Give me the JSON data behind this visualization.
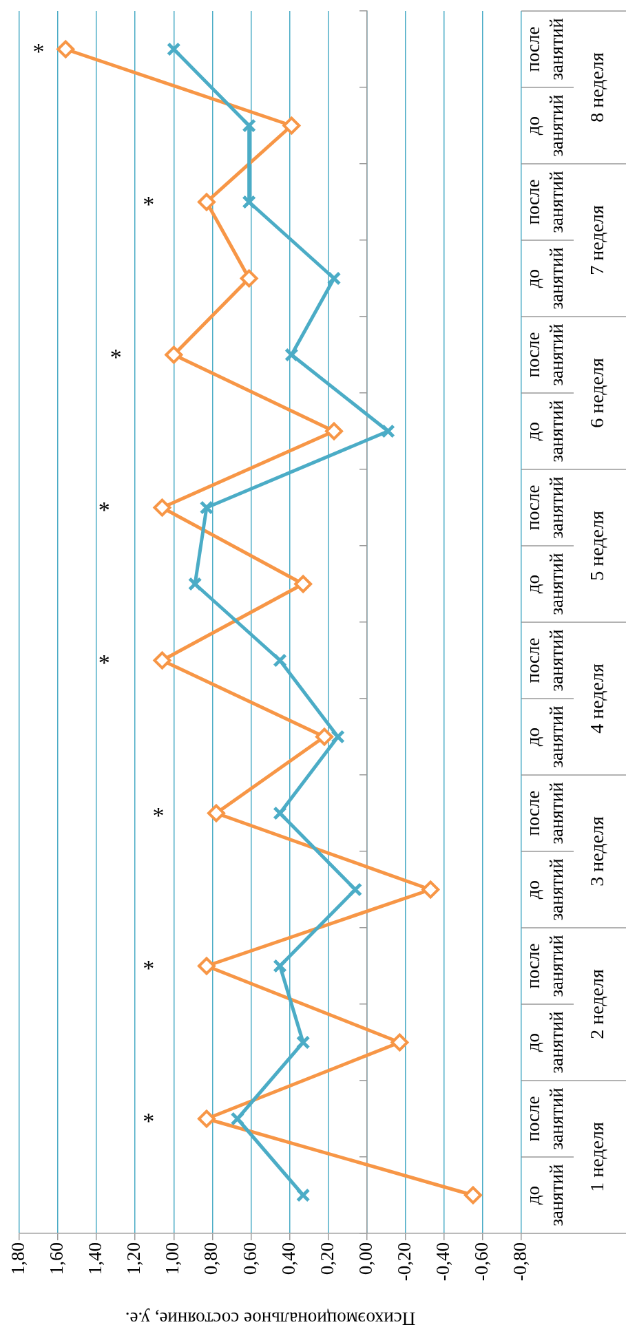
{
  "chart_data": {
    "type": "line",
    "orientation": "horizontal",
    "xlabel": "Психоэмоциональное состояние, у.е.",
    "categories": [
      "после занятий",
      "до занятий",
      "после занятий",
      "до занятий",
      "после занятий",
      "до занятий",
      "после занятий",
      "до занятий",
      "после занятий",
      "до занятий",
      "после занятий",
      "до занятий",
      "после занятий",
      "до занятий",
      "после занятий",
      "до занятий"
    ],
    "series": [
      {
        "color": "#4bacc6",
        "marker": "cross",
        "values": [
          1.0,
          0.61,
          0.61,
          0.17,
          0.39,
          -0.11,
          0.83,
          0.89,
          0.45,
          0.15,
          0.45,
          0.06,
          0.45,
          0.33,
          0.67,
          0.33
        ]
      },
      {
        "color": "#f79646",
        "marker": "diamond",
        "values": [
          1.56,
          0.39,
          0.83,
          0.61,
          1.0,
          0.17,
          1.06,
          0.33,
          1.06,
          0.22,
          0.78,
          -0.33,
          0.83,
          -0.17,
          0.83,
          -0.55
        ]
      }
    ],
    "xlim": [
      1.8,
      -0.8
    ],
    "xticks": [
      {
        "value": 1.8,
        "label": "1,80"
      },
      {
        "value": 1.6,
        "label": "1,60"
      },
      {
        "value": 1.4,
        "label": "1,40"
      },
      {
        "value": 1.2,
        "label": "1,20"
      },
      {
        "value": 1.0,
        "label": "1,00"
      },
      {
        "value": 0.8,
        "label": "0,80"
      },
      {
        "value": 0.6,
        "label": "0,60"
      },
      {
        "value": 0.4,
        "label": "0,40"
      },
      {
        "value": 0.2,
        "label": "0,20"
      },
      {
        "value": 0,
        "label": "0,00"
      },
      {
        "value": -0.2,
        "label": "-0,20"
      },
      {
        "value": -0.4,
        "label": "-0,40"
      },
      {
        "value": -0.6,
        "label": "-0,60"
      },
      {
        "value": -0.8,
        "label": "-0,80"
      }
    ],
    "grid": "x",
    "legend": false,
    "annotations": [
      "8 неделя",
      "7 неделя",
      "6 неделя",
      "5 неделя",
      "4 неделя",
      "3 неделя",
      "2 неделя",
      "1 неделя",
      "*",
      "*",
      "*",
      "*",
      "*",
      "*",
      "*",
      "*"
    ]
  }
}
